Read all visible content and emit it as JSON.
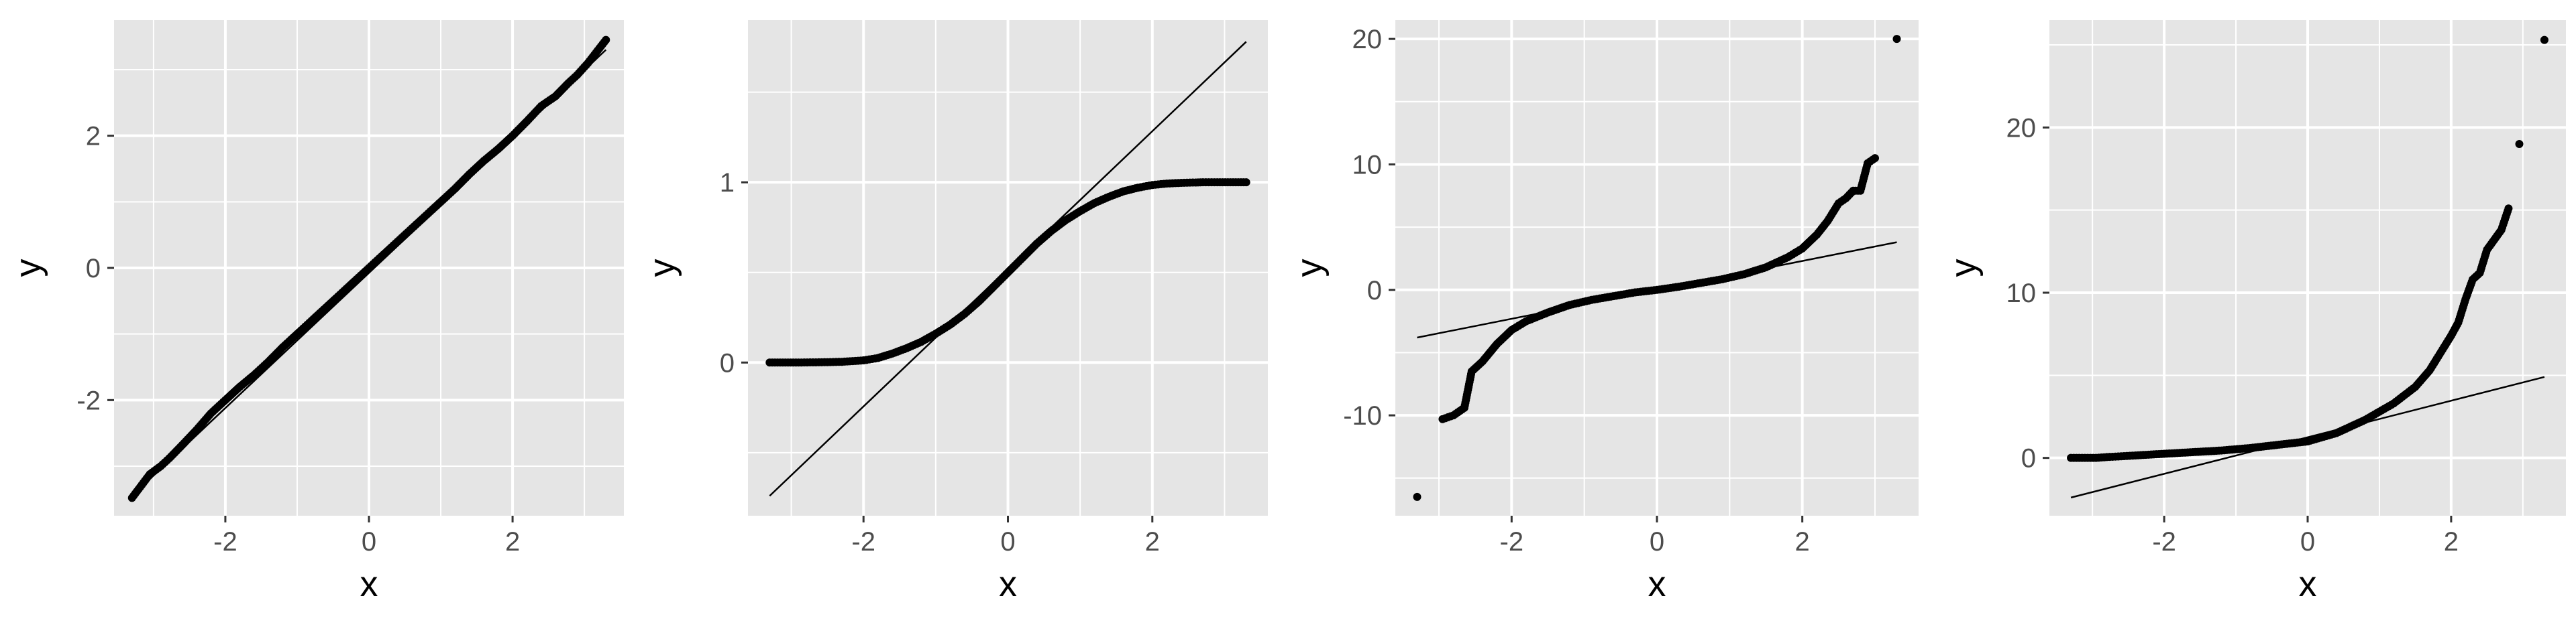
{
  "colors": {
    "panel_background": "#e5e5e5",
    "grid_line": "#ffffff",
    "point": "#000000",
    "reference_line": "#000000",
    "tick_text": "#4d4d4d"
  },
  "chart_data": [
    {
      "type": "scatter",
      "title": "",
      "xlabel": "x",
      "ylabel": "y",
      "xlim": [
        -3.55,
        3.55
      ],
      "ylim": [
        -3.75,
        3.75
      ],
      "xticks": [
        -2,
        0,
        2
      ],
      "yticks": [
        -2,
        0,
        2
      ],
      "grid": true,
      "legend": "none",
      "reference_line": {
        "x": [
          -3.3,
          3.3
        ],
        "y": [
          -3.45,
          3.3
        ]
      },
      "points": {
        "x": [
          -3.3,
          -3.05,
          -2.9,
          -2.78,
          -2.6,
          -2.4,
          -2.2,
          -2.0,
          -1.8,
          -1.6,
          -1.4,
          -1.2,
          -1.0,
          -0.8,
          -0.6,
          -0.4,
          -0.2,
          0.0,
          0.2,
          0.4,
          0.6,
          0.8,
          1.0,
          1.2,
          1.4,
          1.6,
          1.8,
          2.0,
          2.2,
          2.4,
          2.6,
          2.78,
          2.9,
          3.05,
          3.3
        ],
        "y": [
          -3.48,
          -3.12,
          -3.0,
          -2.88,
          -2.68,
          -2.45,
          -2.2,
          -2.0,
          -1.8,
          -1.62,
          -1.42,
          -1.2,
          -1.0,
          -0.8,
          -0.6,
          -0.4,
          -0.2,
          0.0,
          0.2,
          0.4,
          0.6,
          0.8,
          1.0,
          1.2,
          1.42,
          1.62,
          1.8,
          2.0,
          2.22,
          2.45,
          2.6,
          2.8,
          2.92,
          3.1,
          3.45
        ]
      }
    },
    {
      "type": "scatter",
      "title": "",
      "xlabel": "x",
      "ylabel": "y",
      "xlim": [
        -3.6,
        3.6
      ],
      "ylim": [
        -0.85,
        1.9
      ],
      "xticks": [
        -2,
        0,
        2
      ],
      "yticks": [
        0,
        1
      ],
      "grid": true,
      "legend": "none",
      "reference_line": {
        "x": [
          -3.3,
          3.3
        ],
        "y": [
          -0.74,
          1.78
        ]
      },
      "points": {
        "x": [
          -3.3,
          -2.9,
          -2.7,
          -2.5,
          -2.3,
          -2.0,
          -1.8,
          -1.6,
          -1.4,
          -1.2,
          -1.0,
          -0.8,
          -0.6,
          -0.4,
          -0.2,
          0.0,
          0.2,
          0.4,
          0.6,
          0.8,
          1.0,
          1.2,
          1.4,
          1.6,
          1.8,
          2.0,
          2.2,
          2.4,
          2.6,
          2.7,
          2.9,
          3.3
        ],
        "y": [
          0.0,
          0.0,
          0.001,
          0.002,
          0.004,
          0.012,
          0.025,
          0.05,
          0.08,
          0.115,
          0.16,
          0.21,
          0.27,
          0.34,
          0.42,
          0.5,
          0.58,
          0.66,
          0.73,
          0.79,
          0.84,
          0.885,
          0.92,
          0.95,
          0.97,
          0.985,
          0.993,
          0.997,
          0.999,
          1.0,
          1.0,
          1.0
        ]
      }
    },
    {
      "type": "scatter",
      "title": "",
      "xlabel": "x",
      "ylabel": "y",
      "xlim": [
        -3.6,
        3.6
      ],
      "ylim": [
        -18,
        21.5
      ],
      "xticks": [
        -2,
        0,
        2
      ],
      "yticks": [
        -10,
        0,
        10,
        20
      ],
      "grid": true,
      "legend": "none",
      "reference_line": {
        "x": [
          -3.3,
          3.3
        ],
        "y": [
          -3.8,
          3.8
        ]
      },
      "points": {
        "x": [
          -3.3,
          -2.95,
          -2.8,
          -2.65,
          -2.55,
          -2.4,
          -2.2,
          -2.0,
          -1.8,
          -1.5,
          -1.2,
          -0.9,
          -0.6,
          -0.3,
          0.0,
          0.3,
          0.6,
          0.9,
          1.2,
          1.5,
          1.8,
          2.0,
          2.2,
          2.35,
          2.5,
          2.6,
          2.7,
          2.8,
          2.9,
          3.0,
          3.3
        ],
        "y": [
          -16.5,
          -10.3,
          -10.0,
          -9.4,
          -6.5,
          -5.7,
          -4.3,
          -3.2,
          -2.5,
          -1.8,
          -1.2,
          -0.8,
          -0.5,
          -0.2,
          0.0,
          0.25,
          0.55,
          0.85,
          1.25,
          1.8,
          2.6,
          3.3,
          4.4,
          5.5,
          6.9,
          7.3,
          7.9,
          7.9,
          10.1,
          10.5,
          20.0
        ]
      }
    },
    {
      "type": "scatter",
      "title": "",
      "xlabel": "x",
      "ylabel": "y",
      "xlim": [
        -3.6,
        3.6
      ],
      "ylim": [
        -3.5,
        26.5
      ],
      "xticks": [
        -2,
        0,
        2
      ],
      "yticks": [
        0,
        10,
        20
      ],
      "grid": true,
      "legend": "none",
      "reference_line": {
        "x": [
          -3.3,
          3.3
        ],
        "y": [
          -2.4,
          4.9
        ]
      },
      "points": {
        "x": [
          -3.3,
          -2.95,
          -2.8,
          -2.6,
          -2.4,
          -2.0,
          -1.6,
          -1.2,
          -0.8,
          -0.4,
          0.0,
          0.4,
          0.8,
          1.2,
          1.5,
          1.7,
          1.9,
          2.0,
          2.1,
          2.2,
          2.3,
          2.4,
          2.5,
          2.6,
          2.7,
          2.8,
          2.95,
          3.3
        ],
        "y": [
          0.0,
          0.0,
          0.05,
          0.1,
          0.15,
          0.25,
          0.35,
          0.45,
          0.6,
          0.8,
          1.0,
          1.5,
          2.3,
          3.3,
          4.3,
          5.3,
          6.7,
          7.4,
          8.2,
          9.6,
          10.8,
          11.2,
          12.6,
          13.2,
          13.8,
          15.1,
          19.0,
          25.3
        ]
      }
    }
  ]
}
